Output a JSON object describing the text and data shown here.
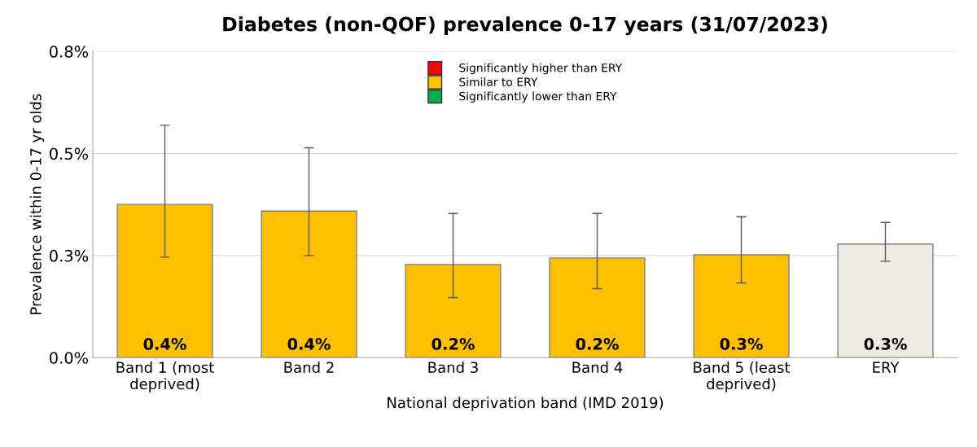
{
  "chart_data": {
    "type": "bar",
    "title": "Diabetes (non-QOF) prevalence 0-17 years (31/07/2023)",
    "xlabel": "National deprivation band (IMD 2019)",
    "ylabel": "Prevalence within 0-17 yr olds",
    "categories": [
      "Band 1 (most\ndeprived)",
      "Band 2",
      "Band 3",
      "Band 4",
      "Band 5 (least\ndeprived)",
      "ERY"
    ],
    "series": [
      {
        "name": "Significantly higher than ERY",
        "color": "#ff0000",
        "values": [
          null,
          null,
          null,
          null,
          null,
          null
        ]
      },
      {
        "name": "Similar to ERY",
        "color": "#ffc000",
        "values": [
          0.375,
          0.359,
          0.228,
          0.244,
          0.252,
          null
        ],
        "errors": [
          [
            0.246,
            0.569
          ],
          [
            0.25,
            0.514
          ],
          [
            0.147,
            0.353
          ],
          [
            0.169,
            0.353
          ],
          [
            0.183,
            0.345
          ],
          null
        ],
        "value_labels": [
          "0.4%",
          "0.4%",
          "0.2%",
          "0.2%",
          "0.3%",
          null
        ]
      },
      {
        "name": "Significantly lower than ERY",
        "color": "#00b050",
        "values": [
          null,
          null,
          null,
          null,
          null,
          null
        ]
      },
      {
        "color": "#eeece1",
        "values": [
          null,
          null,
          null,
          null,
          null,
          0.278
        ],
        "errors": [
          null,
          null,
          null,
          null,
          null,
          [
            0.236,
            0.331
          ]
        ],
        "value_labels": [
          null,
          null,
          null,
          null,
          null,
          "0.3%"
        ]
      }
    ],
    "ylim": [
      0,
      0.75
    ],
    "yticks": [
      {
        "value": 0,
        "label": "0.0%"
      },
      {
        "value": 0.25,
        "label": "0.3%"
      },
      {
        "value": 0.5,
        "label": "0.5%"
      },
      {
        "value": 0.75,
        "label": "0.8%"
      }
    ],
    "grid": "y",
    "legend": "top"
  }
}
